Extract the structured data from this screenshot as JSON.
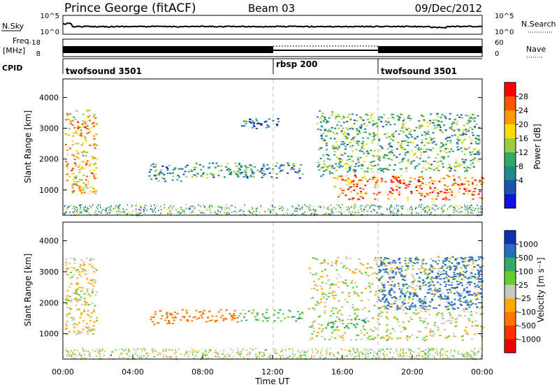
{
  "header": {
    "station": "Prince George (fitACF)",
    "beam": "Beam 03",
    "date": "09/Dec/2012"
  },
  "noise_panel": {
    "left_label": "N.Sky",
    "right_label": "N.Search",
    "left_ticks": [
      "10^5",
      "10^0"
    ],
    "right_ticks": [
      "10^5",
      "10^0"
    ]
  },
  "freq_panel": {
    "left_label_1": "Freq.",
    "left_label_2": "[MHz]",
    "right_label": "Nave",
    "left_ticks": [
      "18",
      "8"
    ],
    "right_ticks": [
      "60",
      "0"
    ]
  },
  "cpid": {
    "label": "CPID",
    "segments": [
      {
        "name": "twofsound 3501",
        "start_hour": 0,
        "end_hour": 12
      },
      {
        "name": "rbsp 200",
        "start_hour": 12,
        "end_hour": 18
      },
      {
        "name": "twofsound 3501",
        "start_hour": 18,
        "end_hour": 24
      }
    ]
  },
  "power_panel": {
    "ylabel": "Slant Range [km]",
    "cbar_label": "Power [dB]",
    "cbar_ticks": [
      "28",
      "24",
      "20",
      "16",
      "12",
      "8",
      "4"
    ],
    "cbar_colors": [
      "#ff0000",
      "#ff5500",
      "#ff9900",
      "#ffdd00",
      "#99cc44",
      "#33aa66",
      "#1f8a8a",
      "#1a55aa",
      "#1010e0"
    ]
  },
  "velocity_panel": {
    "ylabel": "Slant Range [km]",
    "cbar_label": "Velocity [m s⁻¹]",
    "cbar_ticks": [
      "1000",
      "500",
      "100",
      "25",
      "-25",
      "-100",
      "-500",
      "-1000"
    ],
    "cbar_colors": [
      "#1030b0",
      "#2a6ec0",
      "#33aa66",
      "#66cc33",
      "#c8c8c0",
      "#ffaa00",
      "#ff7700",
      "#ff3300",
      "#ee0000"
    ]
  },
  "axes": {
    "yticks": [
      "4000",
      "3000",
      "2000",
      "1000"
    ],
    "xticks": [
      "00:00",
      "04:00",
      "08:00",
      "12:00",
      "16:00",
      "20:00",
      "00:00"
    ],
    "xlabel": "Time UT"
  },
  "chart_data": [
    {
      "type": "line",
      "title": "",
      "ylabel": "N.Sky",
      "xlabel": "Time UT",
      "xlim": [
        0,
        24
      ],
      "description": "Sky noise level, log scale 10^0 – 10^5, approximately constant (~10^1.5) through the day"
    },
    {
      "type": "line",
      "ylabel": "Freq. [MHz]",
      "ylim": [
        8,
        18
      ],
      "xlim": [
        0,
        24
      ],
      "series": [
        {
          "name": "twofsound",
          "x": [
            0,
            12
          ],
          "values": [
            11,
            11
          ]
        },
        {
          "name": "rbsp",
          "x": [
            12,
            18
          ],
          "values": [
            10,
            10
          ]
        },
        {
          "name": "twofsound",
          "x": [
            18,
            24
          ],
          "values": [
            11,
            11
          ]
        }
      ]
    },
    {
      "type": "heatmap",
      "title": "",
      "xlabel": "Time UT",
      "ylabel": "Slant Range [km]",
      "colorbar_label": "Power [dB]",
      "xlim": [
        0,
        24
      ],
      "ylim": [
        180,
        4600
      ],
      "clim": [
        0,
        30
      ],
      "regions": [
        {
          "t": [
            0.1,
            1.9
          ],
          "r": [
            900,
            3600
          ],
          "power": 20
        },
        {
          "t": [
            4.9,
            7.2
          ],
          "r": [
            1300,
            1900
          ],
          "power": 8
        },
        {
          "t": [
            7.3,
            10.5
          ],
          "r": [
            1400,
            1900
          ],
          "power": 10
        },
        {
          "t": [
            9.8,
            13.7
          ],
          "r": [
            1400,
            1900
          ],
          "power": 9
        },
        {
          "t": [
            10.2,
            12.3
          ],
          "r": [
            3000,
            3400
          ],
          "power": 6
        },
        {
          "t": [
            14.5,
            15.5
          ],
          "r": [
            1400,
            3600
          ],
          "power": 12
        },
        {
          "t": [
            15.5,
            24
          ],
          "r": [
            700,
            1500
          ],
          "power": 24
        },
        {
          "t": [
            15.5,
            23.8
          ],
          "r": [
            1600,
            3500
          ],
          "power": 12
        }
      ]
    },
    {
      "type": "heatmap",
      "xlabel": "Time UT",
      "ylabel": "Slant Range [km]",
      "colorbar_label": "Velocity [m s⁻¹]",
      "xlim": [
        0,
        24
      ],
      "ylim": [
        180,
        4600
      ],
      "clim": [
        -1000,
        1000
      ],
      "regions": [
        {
          "t": [
            0.1,
            1.9
          ],
          "r": [
            1000,
            3500
          ],
          "velocity": -25
        },
        {
          "t": [
            4.9,
            7.2
          ],
          "r": [
            1300,
            1800
          ],
          "velocity": -300
        },
        {
          "t": [
            7.3,
            10.0
          ],
          "r": [
            1400,
            1800
          ],
          "velocity": -300
        },
        {
          "t": [
            10.0,
            13.7
          ],
          "r": [
            1400,
            1800
          ],
          "velocity": 100
        },
        {
          "t": [
            14.0,
            24.0
          ],
          "r": [
            800,
            3500
          ],
          "velocity": 0
        },
        {
          "t": [
            15.0,
            17.5
          ],
          "r": [
            1200,
            1500
          ],
          "velocity": 300
        },
        {
          "t": [
            18.0,
            24.0
          ],
          "r": [
            1800,
            3500
          ],
          "velocity": 600
        }
      ]
    }
  ]
}
